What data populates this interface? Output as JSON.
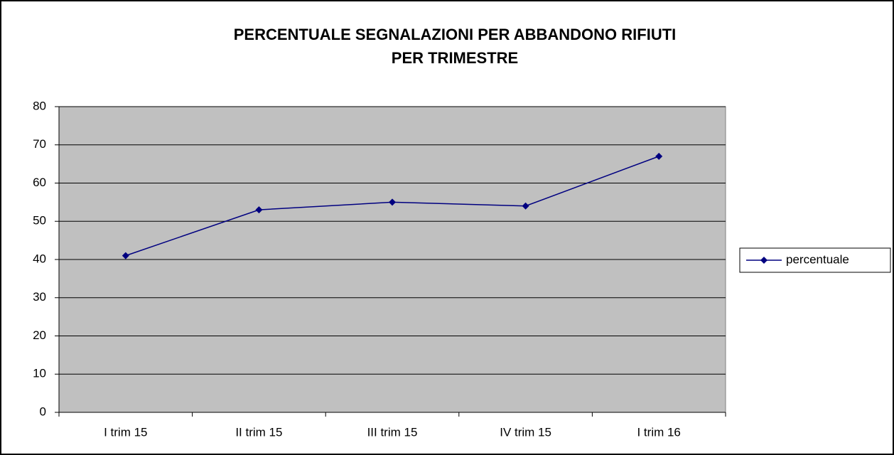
{
  "chart_data": {
    "type": "line",
    "title": [
      "PERCENTUALE SEGNALAZIONI PER ABBANDONO RIFIUTI",
      "PER TRIMESTRE"
    ],
    "categories": [
      "I trim 15",
      "II trim 15",
      "III trim 15",
      "IV trim 15",
      "I trim 16"
    ],
    "series": [
      {
        "name": "percentuale",
        "color": "#000080",
        "values": [
          41,
          53,
          55,
          54,
          67
        ]
      }
    ],
    "ylim": [
      0,
      80
    ],
    "yticks": [
      0,
      10,
      20,
      30,
      40,
      50,
      60,
      70,
      80
    ],
    "grid": true,
    "legend": "right"
  }
}
